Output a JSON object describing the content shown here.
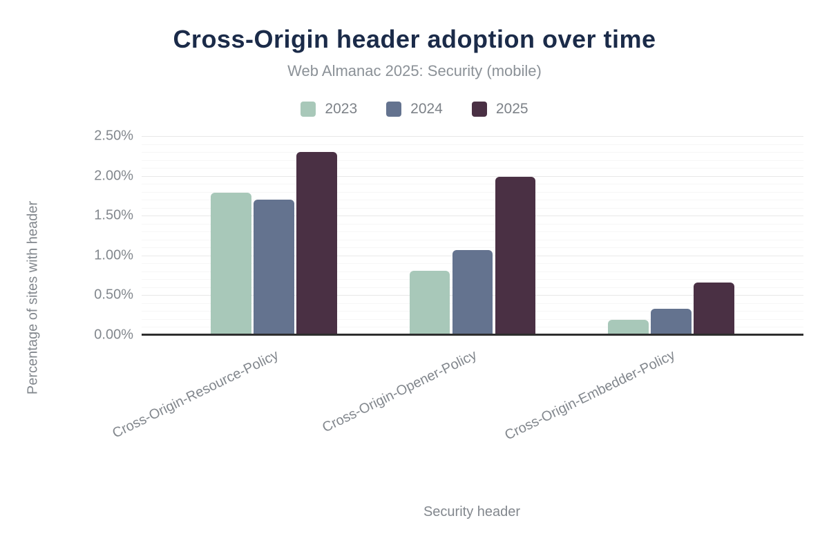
{
  "chart_data": {
    "type": "bar",
    "title": "Cross-Origin header adoption over time",
    "subtitle": "Web Almanac 2025: Security (mobile)",
    "xlabel": "Security header",
    "ylabel": "Percentage of sites with header",
    "categories": [
      "Cross-Origin-Resource-Policy",
      "Cross-Origin-Opener-Policy",
      "Cross-Origin-Embedder-Policy"
    ],
    "series": [
      {
        "name": "2023",
        "color": "#a8c8b9",
        "values": [
          1.79,
          0.81,
          0.19
        ]
      },
      {
        "name": "2024",
        "color": "#64738f",
        "values": [
          1.7,
          1.07,
          0.33
        ]
      },
      {
        "name": "2025",
        "color": "#4a3044",
        "values": [
          2.3,
          1.99,
          0.66
        ]
      }
    ],
    "ylim": [
      0,
      2.5
    ],
    "yticks": [
      {
        "value": 0.0,
        "label": "0.00%"
      },
      {
        "value": 0.5,
        "label": "0.50%"
      },
      {
        "value": 1.0,
        "label": "1.00%"
      },
      {
        "value": 1.5,
        "label": "1.50%"
      },
      {
        "value": 2.0,
        "label": "2.00%"
      },
      {
        "value": 2.5,
        "label": "2.50%"
      }
    ],
    "minor_grid_step": 0.1,
    "grid": true,
    "legend_position": "top"
  },
  "style": {
    "background": "#ffffff",
    "title_color": "#1b2b49",
    "text_gray": "#82878d",
    "axis_line_color": "#2e2e2e",
    "grid_major": "#e8e8e8",
    "grid_minor": "#f6f6f6"
  }
}
